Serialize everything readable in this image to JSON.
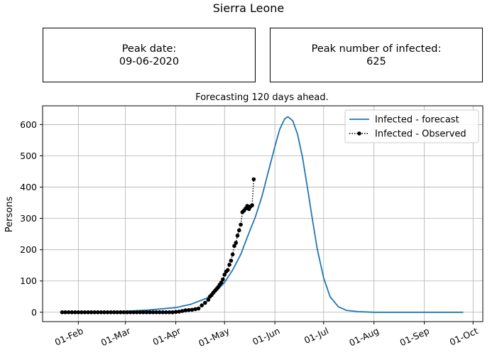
{
  "figure": {
    "title": "Sierra Leone"
  },
  "info_boxes": {
    "peak_date_label": "Peak date:",
    "peak_date_value": "09-06-2020",
    "peak_infected_label": "Peak number of infected:",
    "peak_infected_value": "625"
  },
  "colors": {
    "forecast": "#1f77b4",
    "observed": "#000000",
    "grid": "#b0b0b0"
  },
  "chart_data": {
    "type": "line",
    "title": "Forecasting 120 days ahead.",
    "xlabel": "",
    "ylabel": "Persons",
    "x_axis_type": "date",
    "x_range": [
      "2020-01-10",
      "2020-10-07"
    ],
    "ylim": [
      -30,
      660
    ],
    "x_ticks": [
      {
        "date": "2020-02-01",
        "label": "01-Feb"
      },
      {
        "date": "2020-03-01",
        "label": "01-Mar"
      },
      {
        "date": "2020-04-01",
        "label": "01-Apr"
      },
      {
        "date": "2020-05-01",
        "label": "01-May"
      },
      {
        "date": "2020-06-01",
        "label": "01-Jun"
      },
      {
        "date": "2020-07-01",
        "label": "01-Jul"
      },
      {
        "date": "2020-08-01",
        "label": "01-Aug"
      },
      {
        "date": "2020-09-01",
        "label": "01-Sep"
      },
      {
        "date": "2020-10-01",
        "label": "01-Oct"
      }
    ],
    "y_ticks": [
      0,
      100,
      200,
      300,
      400,
      500,
      600
    ],
    "grid": true,
    "legend_position": "top-right",
    "series": [
      {
        "name": "Infected - forecast",
        "style": "solid-line",
        "points": [
          [
            "2020-01-22",
            0
          ],
          [
            "2020-02-15",
            1
          ],
          [
            "2020-03-01",
            3
          ],
          [
            "2020-03-15",
            7
          ],
          [
            "2020-04-01",
            15
          ],
          [
            "2020-04-10",
            25
          ],
          [
            "2020-04-20",
            45
          ],
          [
            "2020-04-25",
            62
          ],
          [
            "2020-05-01",
            95
          ],
          [
            "2020-05-06",
            135
          ],
          [
            "2020-05-11",
            185
          ],
          [
            "2020-05-15",
            240
          ],
          [
            "2020-05-20",
            305
          ],
          [
            "2020-05-24",
            370
          ],
          [
            "2020-05-28",
            450
          ],
          [
            "2020-06-01",
            530
          ],
          [
            "2020-06-04",
            585
          ],
          [
            "2020-06-07",
            618
          ],
          [
            "2020-06-09",
            625
          ],
          [
            "2020-06-12",
            612
          ],
          [
            "2020-06-15",
            568
          ],
          [
            "2020-06-18",
            495
          ],
          [
            "2020-06-21",
            400
          ],
          [
            "2020-06-24",
            300
          ],
          [
            "2020-06-27",
            205
          ],
          [
            "2020-07-01",
            110
          ],
          [
            "2020-07-05",
            50
          ],
          [
            "2020-07-10",
            18
          ],
          [
            "2020-07-15",
            6
          ],
          [
            "2020-07-22",
            2
          ],
          [
            "2020-08-01",
            0
          ],
          [
            "2020-09-01",
            0
          ],
          [
            "2020-09-25",
            0
          ]
        ]
      },
      {
        "name": "Infected - Observed",
        "style": "dotted-line-with-markers",
        "points": [
          [
            "2020-01-22",
            0
          ],
          [
            "2020-01-24",
            0
          ],
          [
            "2020-01-26",
            0
          ],
          [
            "2020-01-28",
            0
          ],
          [
            "2020-01-30",
            0
          ],
          [
            "2020-02-01",
            0
          ],
          [
            "2020-02-03",
            0
          ],
          [
            "2020-02-05",
            0
          ],
          [
            "2020-02-07",
            0
          ],
          [
            "2020-02-09",
            0
          ],
          [
            "2020-02-11",
            0
          ],
          [
            "2020-02-13",
            0
          ],
          [
            "2020-02-15",
            0
          ],
          [
            "2020-02-17",
            0
          ],
          [
            "2020-02-19",
            0
          ],
          [
            "2020-02-21",
            0
          ],
          [
            "2020-02-23",
            0
          ],
          [
            "2020-02-25",
            0
          ],
          [
            "2020-02-27",
            0
          ],
          [
            "2020-02-29",
            0
          ],
          [
            "2020-03-02",
            0
          ],
          [
            "2020-03-04",
            0
          ],
          [
            "2020-03-06",
            0
          ],
          [
            "2020-03-08",
            0
          ],
          [
            "2020-03-10",
            0
          ],
          [
            "2020-03-12",
            0
          ],
          [
            "2020-03-14",
            0
          ],
          [
            "2020-03-16",
            0
          ],
          [
            "2020-03-18",
            0
          ],
          [
            "2020-03-20",
            0
          ],
          [
            "2020-03-22",
            0
          ],
          [
            "2020-03-24",
            0
          ],
          [
            "2020-03-26",
            0
          ],
          [
            "2020-03-28",
            0
          ],
          [
            "2020-03-30",
            0
          ],
          [
            "2020-04-01",
            1
          ],
          [
            "2020-04-03",
            2
          ],
          [
            "2020-04-05",
            4
          ],
          [
            "2020-04-07",
            6
          ],
          [
            "2020-04-09",
            7
          ],
          [
            "2020-04-11",
            8
          ],
          [
            "2020-04-13",
            10
          ],
          [
            "2020-04-15",
            12
          ],
          [
            "2020-04-17",
            22
          ],
          [
            "2020-04-19",
            30
          ],
          [
            "2020-04-21",
            40
          ],
          [
            "2020-04-22",
            50
          ],
          [
            "2020-04-23",
            55
          ],
          [
            "2020-04-24",
            62
          ],
          [
            "2020-04-25",
            68
          ],
          [
            "2020-04-26",
            74
          ],
          [
            "2020-04-27",
            80
          ],
          [
            "2020-04-28",
            88
          ],
          [
            "2020-04-29",
            95
          ],
          [
            "2020-04-30",
            105
          ],
          [
            "2020-05-01",
            120
          ],
          [
            "2020-05-02",
            130
          ],
          [
            "2020-05-03",
            135
          ],
          [
            "2020-05-04",
            152
          ],
          [
            "2020-05-05",
            165
          ],
          [
            "2020-05-06",
            185
          ],
          [
            "2020-05-07",
            212
          ],
          [
            "2020-05-08",
            222
          ],
          [
            "2020-05-09",
            245
          ],
          [
            "2020-05-10",
            262
          ],
          [
            "2020-05-11",
            280
          ],
          [
            "2020-05-12",
            320
          ],
          [
            "2020-05-13",
            325
          ],
          [
            "2020-05-14",
            332
          ],
          [
            "2020-05-15",
            340
          ],
          [
            "2020-05-16",
            330
          ],
          [
            "2020-05-17",
            338
          ],
          [
            "2020-05-18",
            342
          ],
          [
            "2020-05-19",
            425
          ]
        ]
      }
    ]
  }
}
